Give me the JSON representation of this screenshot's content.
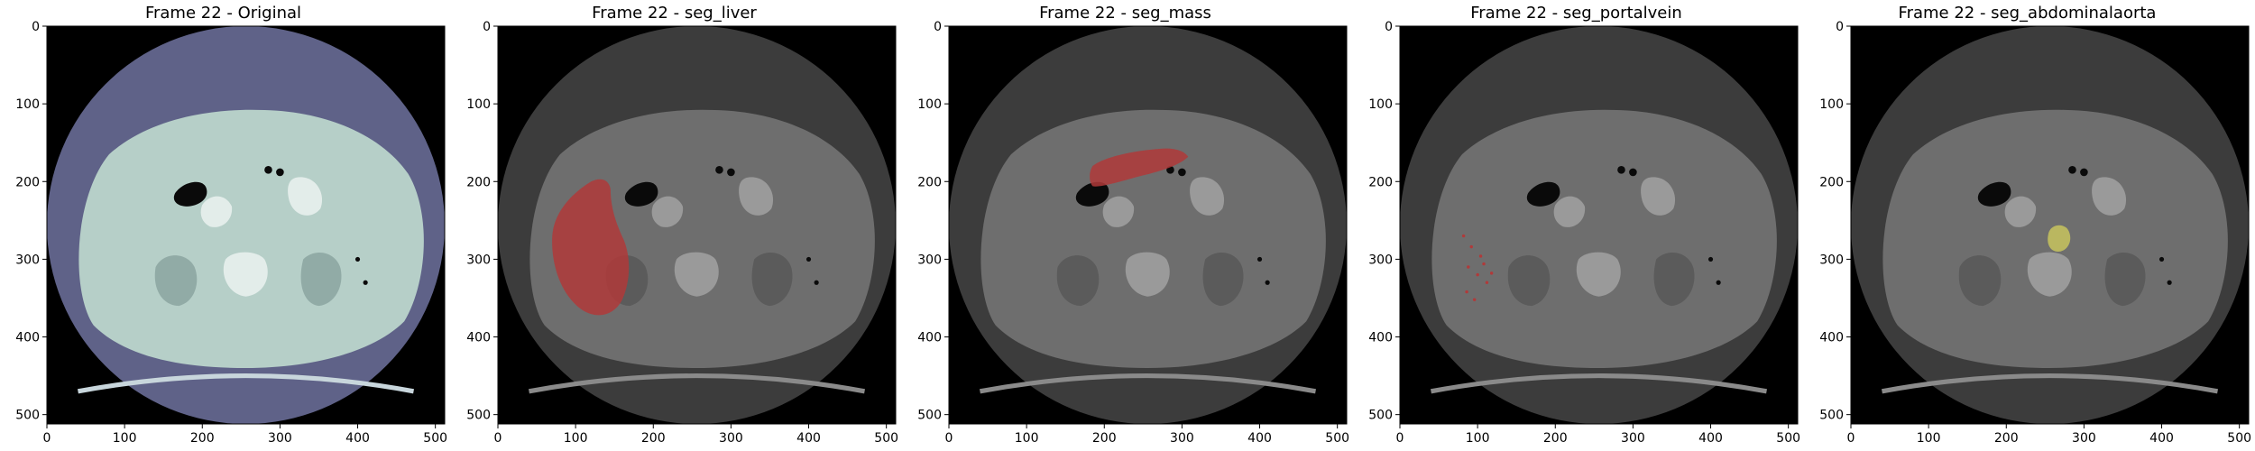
{
  "figure": {
    "panels": [
      {
        "title": "Frame 22 - Original",
        "mode": "original",
        "overlay": null
      },
      {
        "title": "Frame 22 - seg_liver",
        "mode": "gray",
        "overlay": "liver"
      },
      {
        "title": "Frame 22 - seg_mass",
        "mode": "gray",
        "overlay": "mass"
      },
      {
        "title": "Frame 22 - seg_portalvein",
        "mode": "gray",
        "overlay": "portalvein"
      },
      {
        "title": "Frame 22 - seg_abdominalaorta",
        "mode": "gray",
        "overlay": "aorta"
      }
    ],
    "x_ticks": [
      "0",
      "100",
      "200",
      "300",
      "400",
      "500"
    ],
    "y_ticks": [
      "0",
      "100",
      "200",
      "300",
      "400",
      "500"
    ],
    "x_tick_values": [
      0,
      100,
      200,
      300,
      400,
      500
    ],
    "y_tick_values": [
      0,
      100,
      200,
      300,
      400,
      500
    ],
    "image_size": 512,
    "colors": {
      "original_scan": "#5f6288",
      "original_tissue": "#b6cfc8",
      "gray_scan": "#3c3c3c",
      "gray_tissue": "#6e6e6e",
      "seg_red": "#b03a3a",
      "seg_yellow": "#c8c45e"
    }
  }
}
